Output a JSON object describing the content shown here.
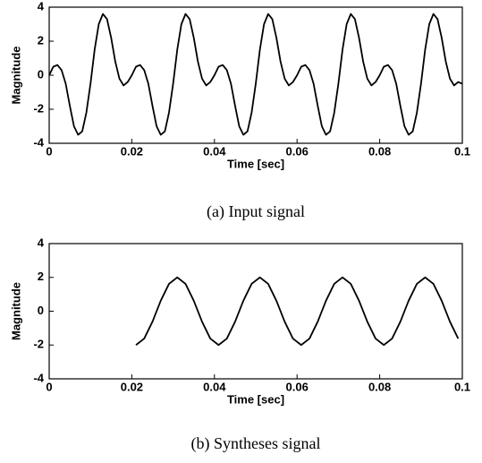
{
  "chart_data": [
    {
      "type": "line",
      "title": "(a) Input signal",
      "xlabel": "Time [sec]",
      "ylabel": "Magnitude",
      "color": "#000000",
      "x": [
        0,
        0.001,
        0.002,
        0.003,
        0.004,
        0.005,
        0.006,
        0.007,
        0.008,
        0.009,
        0.01,
        0.011,
        0.012,
        0.013,
        0.014,
        0.015,
        0.016,
        0.017,
        0.018,
        0.019,
        0.02,
        0.021,
        0.022,
        0.023,
        0.024,
        0.025,
        0.026,
        0.027,
        0.028,
        0.029,
        0.03,
        0.031,
        0.032,
        0.033,
        0.034,
        0.035,
        0.036,
        0.037,
        0.038,
        0.039,
        0.04,
        0.041,
        0.042,
        0.043,
        0.044,
        0.045,
        0.046,
        0.047,
        0.048,
        0.049,
        0.05,
        0.051,
        0.052,
        0.053,
        0.054,
        0.055,
        0.056,
        0.057,
        0.058,
        0.059,
        0.06,
        0.061,
        0.062,
        0.063,
        0.064,
        0.065,
        0.066,
        0.067,
        0.068,
        0.069,
        0.07,
        0.071,
        0.072,
        0.073,
        0.074,
        0.075,
        0.076,
        0.077,
        0.078,
        0.079,
        0.08,
        0.081,
        0.082,
        0.083,
        0.084,
        0.085,
        0.086,
        0.087,
        0.088,
        0.089,
        0.09,
        0.091,
        0.092,
        0.093,
        0.094,
        0.095,
        0.096,
        0.097,
        0.098,
        0.099,
        0.1
      ],
      "values": [
        0,
        0.5,
        0.6,
        0.3,
        -0.5,
        -1.8,
        -3.0,
        -3.5,
        -3.3,
        -2.2,
        -0.5,
        1.5,
        3.0,
        3.6,
        3.3,
        2.2,
        0.8,
        -0.2,
        -0.6,
        -0.4,
        0,
        0.5,
        0.6,
        0.3,
        -0.5,
        -1.8,
        -3.0,
        -3.5,
        -3.3,
        -2.2,
        -0.5,
        1.5,
        3.0,
        3.6,
        3.3,
        2.2,
        0.8,
        -0.2,
        -0.6,
        -0.4,
        0,
        0.5,
        0.6,
        0.3,
        -0.5,
        -1.8,
        -3.0,
        -3.5,
        -3.3,
        -2.2,
        -0.5,
        1.5,
        3.0,
        3.6,
        3.3,
        2.2,
        0.8,
        -0.2,
        -0.6,
        -0.4,
        0,
        0.5,
        0.6,
        0.3,
        -0.5,
        -1.8,
        -3.0,
        -3.5,
        -3.3,
        -2.2,
        -0.5,
        1.5,
        3.0,
        3.6,
        3.3,
        2.2,
        0.8,
        -0.2,
        -0.6,
        -0.4,
        0,
        0.5,
        0.6,
        0.3,
        -0.5,
        -1.8,
        -3.0,
        -3.5,
        -3.3,
        -2.2,
        -0.5,
        1.5,
        3.0,
        3.6,
        3.3,
        2.2,
        0.8,
        -0.2,
        -0.6,
        -0.4,
        -0.5
      ],
      "xlim": [
        0,
        0.1
      ],
      "ylim": [
        -4,
        4
      ],
      "xticks": [
        0,
        0.02,
        0.04,
        0.06,
        0.08,
        0.1
      ],
      "yticks": [
        -4,
        -2,
        0,
        2,
        4
      ]
    },
    {
      "type": "line",
      "title": "(b) Syntheses signal",
      "xlabel": "Time [sec]",
      "ylabel": "Magnitude",
      "color": "#000000",
      "x": [
        0.021,
        0.023,
        0.025,
        0.027,
        0.029,
        0.031,
        0.033,
        0.035,
        0.037,
        0.039,
        0.041,
        0.043,
        0.045,
        0.047,
        0.049,
        0.051,
        0.053,
        0.055,
        0.057,
        0.059,
        0.061,
        0.063,
        0.065,
        0.067,
        0.069,
        0.071,
        0.073,
        0.075,
        0.077,
        0.079,
        0.081,
        0.083,
        0.085,
        0.087,
        0.089,
        0.091,
        0.093,
        0.095,
        0.097,
        0.099
      ],
      "values": [
        -2,
        -1.62,
        -0.62,
        0.62,
        1.62,
        2,
        1.62,
        0.62,
        -0.62,
        -1.62,
        -2,
        -1.62,
        -0.62,
        0.62,
        1.62,
        2,
        1.62,
        0.62,
        -0.62,
        -1.62,
        -2,
        -1.62,
        -0.62,
        0.62,
        1.62,
        2,
        1.62,
        0.62,
        -0.62,
        -1.62,
        -2,
        -1.62,
        -0.62,
        0.62,
        1.62,
        2,
        1.62,
        0.62,
        -0.62,
        -1.62
      ],
      "xlim": [
        0,
        0.1
      ],
      "ylim": [
        -4,
        4
      ],
      "xticks": [
        0,
        0.02,
        0.04,
        0.06,
        0.08,
        0.1
      ],
      "yticks": [
        -4,
        -2,
        0,
        2,
        4
      ]
    }
  ]
}
